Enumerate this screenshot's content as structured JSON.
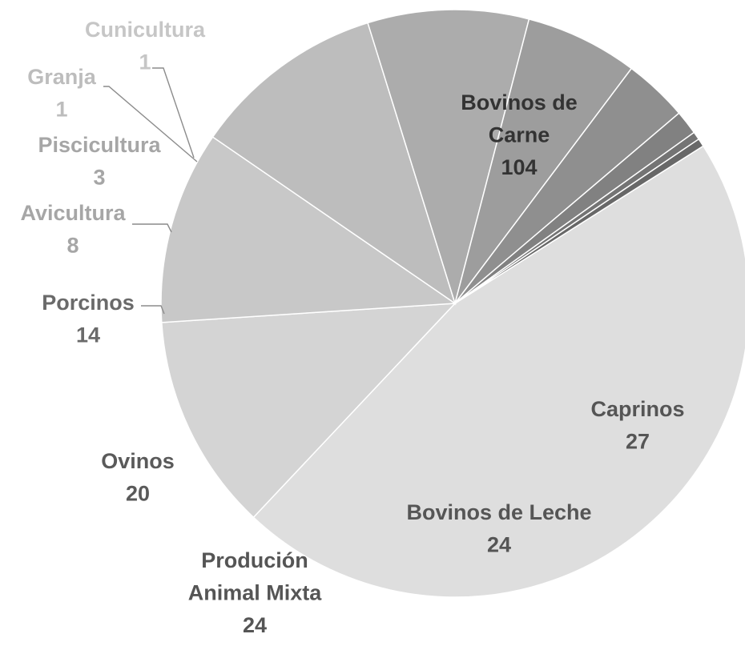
{
  "chart_data": {
    "type": "pie",
    "title": "",
    "categories": [
      "Bovinos de Carne",
      "Caprinos",
      "Bovinos de Leche",
      "Produción Animal Mixta",
      "Ovinos",
      "Porcinos",
      "Avicultura",
      "Piscicultura",
      "Granja",
      "Cunicultura"
    ],
    "values": [
      104,
      27,
      24,
      24,
      20,
      14,
      8,
      3,
      1,
      1
    ],
    "label_lines": [
      [
        "Bovinos de",
        "Carne",
        "104"
      ],
      [
        "Caprinos",
        "27"
      ],
      [
        "Bovinos de Leche",
        "24"
      ],
      [
        "Produción",
        "Animal Mixta",
        "24"
      ],
      [
        "Ovinos",
        "20"
      ],
      [
        "Porcinos",
        "14"
      ],
      [
        "Avicultura",
        "8"
      ],
      [
        "Piscicultura",
        "3"
      ],
      [
        "Granja",
        "1"
      ],
      [
        "Cunicultura",
        "1"
      ]
    ],
    "colors": [
      "#dedede",
      "#d4d4d4",
      "#c8c8c8",
      "#bdbdbd",
      "#acacac",
      "#9d9d9d",
      "#8f8f8f",
      "#818181",
      "#747474",
      "#686868"
    ],
    "label_colors": [
      "#333333",
      "#555555",
      "#555555",
      "#555555",
      "#5a5a5a",
      "#6a6a6a",
      "#a6a6a6",
      "#a6a6a6",
      "#bdbdbd",
      "#c6c6c6"
    ],
    "legend": "none"
  }
}
